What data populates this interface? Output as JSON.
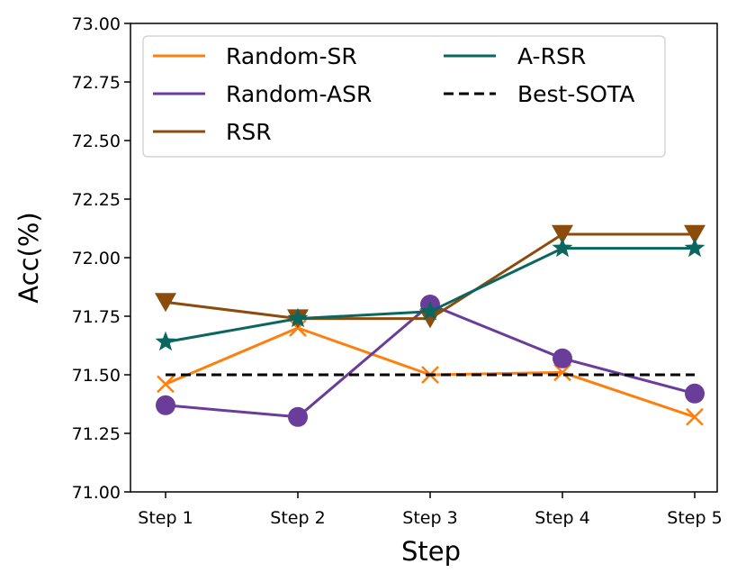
{
  "chart_data": {
    "type": "line",
    "title": "",
    "xlabel": "Step",
    "ylabel": "Acc(%)",
    "categories": [
      "Step 1",
      "Step 2",
      "Step 3",
      "Step 4",
      "Step 5"
    ],
    "ylim": [
      71.0,
      73.0
    ],
    "yticks": [
      "71.00",
      "71.25",
      "71.50",
      "71.75",
      "72.00",
      "72.25",
      "72.50",
      "72.75",
      "73.00"
    ],
    "grid": false,
    "legend_position": "top-left",
    "series": [
      {
        "name": "Random-SR",
        "color": "#ff7f0e",
        "marker": "x",
        "linestyle": "solid",
        "values": [
          71.46,
          71.7,
          71.5,
          71.51,
          71.32
        ]
      },
      {
        "name": "Random-ASR",
        "color": "#6a3d9a",
        "marker": "circle",
        "linestyle": "solid",
        "values": [
          71.37,
          71.32,
          71.8,
          71.57,
          71.42
        ]
      },
      {
        "name": "RSR",
        "color": "#8b4c0c",
        "marker": "triangle-down",
        "linestyle": "solid",
        "values": [
          71.81,
          71.74,
          71.74,
          72.1,
          72.1
        ]
      },
      {
        "name": "A-RSR",
        "color": "#0b6660",
        "marker": "star",
        "linestyle": "solid",
        "values": [
          71.64,
          71.74,
          71.77,
          72.04,
          72.04
        ]
      },
      {
        "name": "Best-SOTA",
        "color": "#000000",
        "marker": "none",
        "linestyle": "dashed",
        "values": [
          71.5,
          71.5,
          71.5,
          71.5,
          71.5
        ]
      }
    ]
  }
}
